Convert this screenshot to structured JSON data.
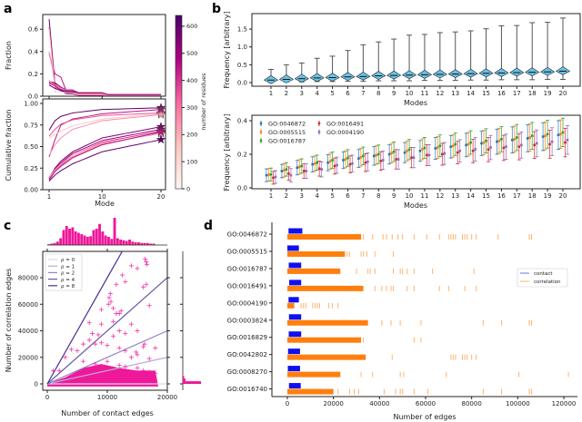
{
  "chart_data": [
    {
      "panel": "a",
      "type": "line",
      "top": {
        "ylabel": "Fraction",
        "ylim": [
          0,
          0.72
        ],
        "yticks": [
          "0.0",
          "0.2",
          "0.4",
          "0.6"
        ],
        "ytick_values": [
          0,
          0.2,
          0.4,
          0.6
        ]
      },
      "bottom": {
        "ylabel": "Cumulative fraction",
        "ylim": [
          0,
          1.0
        ],
        "yticks": [
          "0.00",
          "0.25",
          "0.50",
          "0.75",
          "1.00"
        ],
        "ytick_values": [
          0,
          0.25,
          0.5,
          0.75,
          1.0
        ]
      },
      "xlabel": "Mode",
      "xticks": [
        "1",
        "10",
        "20"
      ],
      "xtick_values": [
        1,
        10,
        20
      ],
      "colorbar": {
        "label": "number of residues",
        "range": [
          0,
          640
        ],
        "ticks": [
          "0",
          "100",
          "200",
          "300",
          "400",
          "500",
          "600"
        ],
        "tick_values": [
          0,
          100,
          200,
          300,
          400,
          500,
          600
        ],
        "colors": [
          "#fff7f3",
          "#fcc5c0",
          "#f768a1",
          "#ae017e",
          "#49006a"
        ]
      },
      "key_modes": [
        1,
        2,
        3,
        5,
        10,
        20
      ],
      "series": [
        {
          "residues": 600,
          "cumulative": [
            0.69,
            0.8,
            0.85,
            0.89,
            0.93,
            0.95
          ]
        },
        {
          "residues": 450,
          "cumulative": [
            0.38,
            0.58,
            0.75,
            0.82,
            0.88,
            0.93
          ]
        },
        {
          "residues": 350,
          "cumulative": [
            0.62,
            0.7,
            0.76,
            0.81,
            0.86,
            0.89
          ]
        },
        {
          "residues": 150,
          "cumulative": [
            0.6,
            0.64,
            0.68,
            0.74,
            0.82,
            0.88
          ]
        },
        {
          "residues": 250,
          "cumulative": [
            0.4,
            0.52,
            0.6,
            0.7,
            0.8,
            0.87
          ]
        },
        {
          "residues": 550,
          "cumulative": [
            0.13,
            0.25,
            0.33,
            0.44,
            0.6,
            0.73
          ]
        },
        {
          "residues": 500,
          "cumulative": [
            0.14,
            0.24,
            0.31,
            0.42,
            0.57,
            0.7
          ]
        },
        {
          "residues": 400,
          "cumulative": [
            0.12,
            0.22,
            0.29,
            0.4,
            0.55,
            0.68
          ]
        },
        {
          "residues": 300,
          "cumulative": [
            0.11,
            0.21,
            0.28,
            0.38,
            0.53,
            0.66
          ]
        },
        {
          "residues": 200,
          "cumulative": [
            0.14,
            0.23,
            0.3,
            0.4,
            0.54,
            0.65
          ]
        },
        {
          "residues": 600,
          "cumulative": [
            0.1,
            0.17,
            0.22,
            0.3,
            0.44,
            0.58
          ]
        },
        {
          "residues": 450,
          "cumulative": [
            0.12,
            0.21,
            0.27,
            0.37,
            0.52,
            0.67
          ]
        }
      ]
    },
    {
      "panel": "b-top",
      "type": "violin",
      "xlabel": "Modes",
      "ylabel": "Frequency [arbitrary]",
      "categories": [
        "1",
        "2",
        "3",
        "4",
        "5",
        "6",
        "7",
        "8",
        "9",
        "10",
        "11",
        "12",
        "13",
        "14",
        "15",
        "16",
        "17",
        "18",
        "19",
        "20"
      ],
      "yticks": [
        "0.0",
        "0.5",
        "1.0",
        "1.5"
      ],
      "ytick_values": [
        0,
        0.5,
        1.0,
        1.5
      ],
      "ylim": [
        -0.05,
        1.9
      ],
      "max": [
        0.37,
        0.5,
        0.55,
        0.68,
        0.74,
        0.9,
        1.06,
        1.14,
        1.22,
        1.33,
        1.35,
        1.4,
        1.42,
        1.45,
        1.51,
        1.59,
        1.6,
        1.68,
        1.69,
        1.81
      ],
      "median": [
        0.07,
        0.09,
        0.11,
        0.13,
        0.14,
        0.16,
        0.17,
        0.19,
        0.2,
        0.21,
        0.22,
        0.23,
        0.24,
        0.25,
        0.26,
        0.27,
        0.28,
        0.29,
        0.3,
        0.32
      ],
      "min": [
        0.01,
        0.02,
        0.02,
        0.03,
        0.03,
        0.04,
        0.04,
        0.05,
        0.05,
        0.05,
        0.06,
        0.06,
        0.06,
        0.07,
        0.07,
        0.08,
        0.08,
        0.08,
        0.09,
        0.09
      ],
      "fill": "#6cc2e6"
    },
    {
      "panel": "b-bottom",
      "type": "errorbar",
      "xlabel": "Modes",
      "ylabel": "Frequency [arbitrary]",
      "categories": [
        "1",
        "2",
        "3",
        "4",
        "5",
        "6",
        "7",
        "8",
        "9",
        "10",
        "11",
        "12",
        "13",
        "14",
        "15",
        "16",
        "17",
        "18",
        "19",
        "20"
      ],
      "yticks": [
        "0.0",
        "0.2",
        "0.4"
      ],
      "ytick_values": [
        0,
        0.2,
        0.4
      ],
      "ylim": [
        0,
        0.42
      ],
      "legend_position": "upper-left",
      "errors": [
        0.038,
        0.04,
        0.043,
        0.045,
        0.048,
        0.05,
        0.053,
        0.055,
        0.058,
        0.06,
        0.062,
        0.065,
        0.067,
        0.07,
        0.072,
        0.075,
        0.078,
        0.08,
        0.083,
        0.085
      ],
      "series": [
        {
          "name": "GO:0046872",
          "color": "#1f77b4",
          "values": [
            0.075,
            0.1,
            0.12,
            0.14,
            0.15,
            0.165,
            0.175,
            0.19,
            0.2,
            0.21,
            0.22,
            0.235,
            0.245,
            0.255,
            0.265,
            0.275,
            0.285,
            0.295,
            0.305,
            0.315
          ]
        },
        {
          "name": "GO:0005515",
          "color": "#ff7f0e",
          "values": [
            0.078,
            0.105,
            0.125,
            0.145,
            0.158,
            0.17,
            0.182,
            0.195,
            0.207,
            0.22,
            0.23,
            0.24,
            0.25,
            0.26,
            0.27,
            0.28,
            0.29,
            0.3,
            0.31,
            0.32
          ]
        },
        {
          "name": "GO:0016787",
          "color": "#2ca02c",
          "values": [
            0.08,
            0.11,
            0.13,
            0.15,
            0.165,
            0.178,
            0.19,
            0.2,
            0.215,
            0.228,
            0.238,
            0.25,
            0.26,
            0.27,
            0.28,
            0.29,
            0.3,
            0.31,
            0.32,
            0.33
          ]
        },
        {
          "name": "GO:0016491",
          "color": "#d62728",
          "values": [
            0.06,
            0.085,
            0.1,
            0.115,
            0.13,
            0.14,
            0.15,
            0.16,
            0.17,
            0.18,
            0.195,
            0.2,
            0.21,
            0.22,
            0.228,
            0.238,
            0.245,
            0.255,
            0.26,
            0.27
          ]
        },
        {
          "name": "GO:0004190",
          "color": "#9467bd",
          "values": [
            0.065,
            0.075,
            0.1,
            0.11,
            0.135,
            0.145,
            0.155,
            0.165,
            0.17,
            0.18,
            0.195,
            0.205,
            0.22,
            0.23,
            0.24,
            0.245,
            0.255,
            0.265,
            0.275,
            0.285
          ]
        }
      ]
    },
    {
      "panel": "c",
      "type": "scatter",
      "xlabel": "Number of contact edges",
      "ylabel": "Number of correlation edges",
      "xlim": [
        0,
        20000
      ],
      "ylim": [
        -3000,
        100000
      ],
      "xticks": [
        "0",
        "10000",
        "20000"
      ],
      "xtick_values": [
        0,
        10000,
        20000
      ],
      "yticks": [
        "0",
        "20000",
        "40000",
        "60000",
        "80000"
      ],
      "ytick_values": [
        0,
        20000,
        40000,
        60000,
        80000
      ],
      "color": "#f0189a",
      "legend_position": "upper-left",
      "lines": [
        {
          "label": "ρ = 0",
          "rho": 0,
          "color": "#dcd6ee"
        },
        {
          "label": "ρ = 1",
          "rho": 1,
          "color": "#b6acd8"
        },
        {
          "label": "ρ = 2",
          "rho": 2,
          "color": "#9085c2"
        },
        {
          "label": "ρ = 4",
          "rho": 4,
          "color": "#6a56ad"
        },
        {
          "label": "ρ = 8",
          "rho": 8,
          "color": "#4a2f94"
        }
      ],
      "points": [
        [
          16500,
          92000
        ],
        [
          16300,
          94000
        ],
        [
          16600,
          90000
        ],
        [
          14000,
          89000
        ],
        [
          15000,
          87000
        ],
        [
          12500,
          82000
        ],
        [
          11500,
          75000
        ],
        [
          13000,
          77000
        ],
        [
          16000,
          73000
        ],
        [
          16500,
          75000
        ],
        [
          10500,
          68000
        ],
        [
          10300,
          65000
        ],
        [
          10600,
          62000
        ],
        [
          10200,
          60000
        ],
        [
          11000,
          57000
        ],
        [
          11500,
          53000
        ],
        [
          9000,
          56000
        ],
        [
          12300,
          55000
        ],
        [
          12000,
          53000
        ],
        [
          17000,
          59000
        ],
        [
          11000,
          47000
        ],
        [
          12000,
          40000
        ],
        [
          7000,
          46000
        ],
        [
          9000,
          45000
        ],
        [
          14000,
          45000
        ],
        [
          15000,
          40000
        ],
        [
          7500,
          38000
        ],
        [
          8500,
          37000
        ],
        [
          11000,
          36000
        ],
        [
          13000,
          38000
        ],
        [
          16000,
          28000
        ],
        [
          16200,
          30000
        ],
        [
          18000,
          27000
        ],
        [
          15000,
          22000
        ],
        [
          14800,
          24000
        ],
        [
          3000,
          20000
        ],
        [
          4000,
          26000
        ],
        [
          5000,
          25000
        ],
        [
          6000,
          30000
        ],
        [
          7000,
          33000
        ],
        [
          8000,
          30000
        ],
        [
          9000,
          31000
        ],
        [
          10000,
          29000
        ],
        [
          12000,
          27000
        ],
        [
          13000,
          25000
        ],
        [
          14000,
          20000
        ],
        [
          17000,
          19000
        ],
        [
          6000,
          17000
        ],
        [
          8000,
          15000
        ],
        [
          10000,
          17000
        ],
        [
          12000,
          14000
        ],
        [
          2000,
          10000
        ],
        [
          1000,
          10000
        ],
        [
          13000,
          13000
        ],
        [
          15000,
          12000
        ],
        [
          16000,
          10000
        ],
        [
          17000,
          9000
        ],
        [
          18000,
          8000
        ],
        [
          11000,
          8000
        ]
      ],
      "dense_region": [
        [
          0,
          -2000
        ],
        [
          0,
          0
        ],
        [
          3000,
          5000
        ],
        [
          6000,
          12000
        ],
        [
          9000,
          15000
        ],
        [
          12000,
          12000
        ],
        [
          15000,
          10000
        ],
        [
          18000,
          10000
        ],
        [
          18500,
          -2000
        ]
      ],
      "x_histogram": {
        "bin_width": 500,
        "counts": [
          1,
          2,
          3,
          5,
          10,
          22,
          28,
          24,
          26,
          20,
          18,
          16,
          14,
          12,
          13,
          22,
          24,
          31,
          20,
          14,
          12,
          9,
          40,
          10,
          8,
          7,
          6,
          8,
          5,
          4,
          4,
          3,
          3,
          3,
          2,
          2
        ]
      },
      "y_histogram": {
        "bin_width": 2000,
        "counts": [
          40,
          6,
          3,
          1
        ]
      }
    },
    {
      "panel": "d",
      "type": "event",
      "xlabel": "Number of edges",
      "xlim": [
        -8000,
        128000
      ],
      "xticks": [
        "0",
        "20000",
        "40000",
        "60000",
        "80000",
        "100000",
        "120000"
      ],
      "xtick_values": [
        0,
        20000,
        40000,
        60000,
        80000,
        100000,
        120000
      ],
      "legend": [
        {
          "label": "contact",
          "color": "#1010ee"
        },
        {
          "label": "correlation",
          "color": "#ff7f0e"
        }
      ],
      "legend_position": "center-right",
      "rows": [
        {
          "term": "GO:0046872",
          "contact": [
            500,
            6500
          ],
          "dense_to": 32000,
          "correlation": [
            33000,
            37000,
            41500,
            43000,
            45500,
            48000,
            50000,
            55000,
            60500,
            66000,
            70000,
            71000,
            72000,
            73000,
            76000,
            77000,
            78000,
            80000,
            82000,
            91500,
            105000,
            106000
          ]
        },
        {
          "term": "GO:0005515",
          "contact": [
            0,
            5000
          ],
          "dense_to": 25000,
          "correlation": [
            26000,
            27000,
            32000,
            33000,
            34500,
            38000,
            46000
          ]
        },
        {
          "term": "GO:0016787",
          "contact": [
            600,
            6000
          ],
          "dense_to": 23000,
          "correlation": [
            30000,
            35000,
            36000,
            38000,
            46000,
            49000,
            50000,
            52000,
            55000,
            63000,
            81000
          ]
        },
        {
          "term": "GO:0016491",
          "contact": [
            800,
            6000
          ],
          "dense_to": 33000,
          "correlation": [
            38000,
            41000,
            43000,
            45000,
            46000,
            52000,
            55000,
            66000,
            70000,
            77000,
            82000
          ]
        },
        {
          "term": "GO:0004190",
          "contact": [
            500,
            5000
          ],
          "dense_to": 3000,
          "correlation": [
            6000,
            7000,
            8000,
            11000,
            12000,
            13000,
            14000,
            18000,
            19500,
            22000
          ]
        },
        {
          "term": "GO:0003824",
          "contact": [
            700,
            6000
          ],
          "dense_to": 35000,
          "correlation": [
            41000,
            45000,
            49000,
            58000,
            85000,
            93000,
            105000,
            106000
          ]
        },
        {
          "term": "GO:0016829",
          "contact": [
            600,
            6000
          ],
          "dense_to": 32000,
          "correlation": [
            33000,
            55000,
            58000
          ]
        },
        {
          "term": "GO:0042802",
          "contact": [
            300,
            5500
          ],
          "dense_to": 34000,
          "correlation": [
            45500,
            71000,
            72000,
            73000,
            76000,
            77000,
            78000,
            80000,
            82000
          ]
        },
        {
          "term": "GO:0008270",
          "contact": [
            200,
            5500
          ],
          "dense_to": 23000,
          "correlation": [
            32000,
            37000,
            49000,
            50500,
            69000,
            100500,
            122000
          ]
        },
        {
          "term": "GO:0016740",
          "contact": [
            700,
            5800
          ],
          "dense_to": 20000,
          "correlation": [
            22000,
            27000,
            29000,
            31000,
            42000,
            47000,
            49000,
            50000,
            55000,
            61000,
            85000,
            93000,
            105000,
            106000
          ]
        }
      ]
    }
  ],
  "panels": {
    "a": "a",
    "b": "b",
    "c": "c",
    "d": "d"
  }
}
